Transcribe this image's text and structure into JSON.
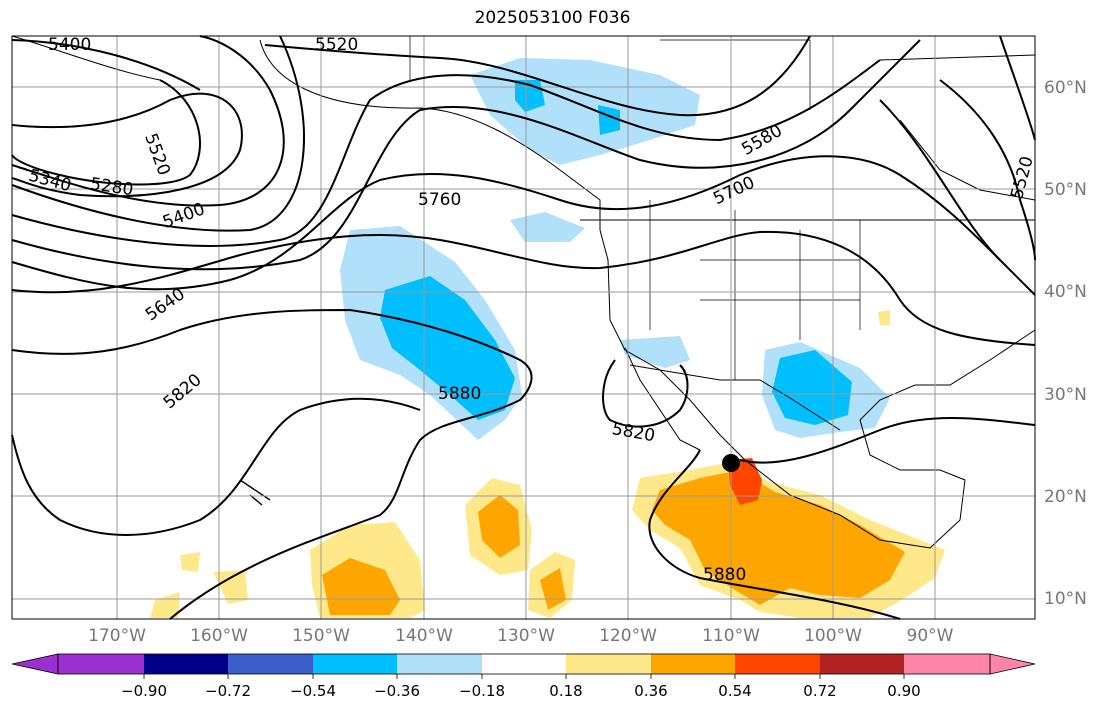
{
  "title": "2025053100 F036",
  "colors": {
    "ocean": "#ffffff",
    "grid": "#9a9a9a",
    "contour": "#000000",
    "coast": "#000000"
  },
  "lon_labels": [
    "170°W",
    "160°W",
    "150°W",
    "140°W",
    "130°W",
    "120°W",
    "110°W",
    "100°W",
    "90°W"
  ],
  "lat_labels": [
    "60°N",
    "50°N",
    "40°N",
    "30°N",
    "20°N",
    "10°N"
  ],
  "contour_labels": [
    "5400",
    "5520",
    "5520",
    "5580",
    "5700",
    "5760",
    "5640",
    "5820",
    "5880",
    "5820",
    "5880",
    "5520",
    "5340",
    "5280",
    "5400"
  ],
  "colorbar": {
    "ticks": [
      "−0.90",
      "−0.72",
      "−0.54",
      "−0.36",
      "−0.18",
      "0.18",
      "0.36",
      "0.54",
      "0.72",
      "0.90"
    ],
    "colors": [
      "#9b30d0",
      "#00008b",
      "#3a5fcd",
      "#00bfff",
      "#b0e0fa",
      "#ffffff",
      "#ffe88a",
      "#ffa500",
      "#ff4500",
      "#b22222",
      "#ff85a8"
    ]
  }
}
